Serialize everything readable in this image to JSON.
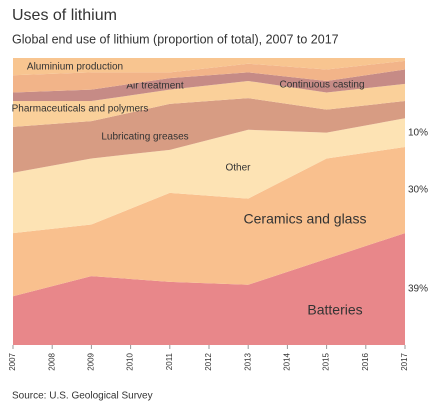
{
  "chart_data": {
    "type": "stacked_area",
    "title": "Uses of lithium",
    "subtitle": "Global end use of lithium (proportion of total), 2007 to 2017",
    "source": "Source: U.S. Geological Survey",
    "x": [
      2007,
      2009,
      2011,
      2013,
      2015,
      2017
    ],
    "xlim": [
      2007,
      2017
    ],
    "xticks": [
      2007,
      2008,
      2009,
      2010,
      2011,
      2012,
      2013,
      2014,
      2015,
      2016,
      2017
    ],
    "ylim": [
      0,
      100
    ],
    "series": [
      {
        "name": "Batteries",
        "color": "#e8878a",
        "values": [
          17,
          24,
          22,
          21,
          30,
          39
        ],
        "value_labels": [
          null,
          null,
          null,
          null,
          null,
          "39%"
        ]
      },
      {
        "name": "Ceramics and glass",
        "color": "#f9c08e",
        "values": [
          22,
          18,
          31,
          30,
          35,
          30
        ],
        "value_labels": [
          null,
          null,
          null,
          null,
          null,
          "30%"
        ]
      },
      {
        "name": "Other",
        "color": "#fde3b4",
        "values": [
          21,
          23,
          15,
          24,
          9,
          10
        ],
        "value_labels": [
          null,
          null,
          null,
          null,
          null,
          "10%"
        ]
      },
      {
        "name": "Lubricating greases",
        "color": "#d79c83",
        "values": [
          16,
          13,
          16,
          11,
          8,
          6
        ]
      },
      {
        "name": "Pharmaceuticals and polymers",
        "color": "#fad09a",
        "values": [
          9,
          7,
          5,
          6,
          6,
          6
        ]
      },
      {
        "name": "Air treatment",
        "color": "#c68b86",
        "values": [
          3,
          4,
          4,
          3,
          4,
          5
        ]
      },
      {
        "name": "Continuous casting",
        "color": "#f2b489",
        "values": [
          6,
          6,
          2,
          3,
          4,
          3
        ]
      },
      {
        "name": "Aluminium production",
        "color": "#f8c590",
        "values": [
          6,
          5,
          5,
          2,
          4,
          1
        ]
      }
    ]
  }
}
